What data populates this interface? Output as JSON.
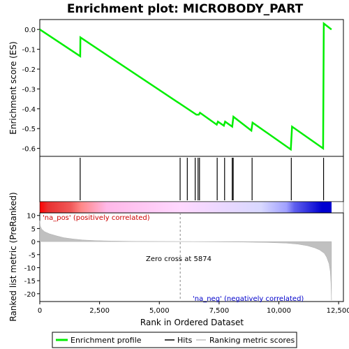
{
  "chart_data": {
    "type": "line",
    "title": "Enrichment plot: MICROBODY_PART",
    "enrichment_panel": {
      "ylabel": "Enrichment score (ES)",
      "ylim": [
        -0.64,
        0.05
      ],
      "yticks": [
        0.0,
        -0.1,
        -0.2,
        -0.3,
        -0.4,
        -0.5,
        -0.6
      ],
      "ytick_labels": [
        "0.0",
        "-0.1",
        "-0.2",
        "-0.3",
        "-0.4",
        "-0.5",
        "-0.6"
      ],
      "line_color": "#00ee00",
      "points": [
        [
          0,
          0.0
        ],
        [
          1690,
          -0.135
        ],
        [
          1700,
          -0.04
        ],
        [
          6550,
          -0.43
        ],
        [
          6650,
          -0.43
        ],
        [
          6700,
          -0.42
        ],
        [
          7400,
          -0.48
        ],
        [
          7450,
          -0.465
        ],
        [
          7700,
          -0.485
        ],
        [
          7750,
          -0.465
        ],
        [
          8050,
          -0.49
        ],
        [
          8100,
          -0.44
        ],
        [
          8850,
          -0.51
        ],
        [
          8900,
          -0.47
        ],
        [
          10500,
          -0.605
        ],
        [
          10550,
          -0.49
        ],
        [
          11850,
          -0.6
        ],
        [
          11880,
          0.03
        ],
        [
          12200,
          0.0
        ]
      ]
    },
    "hits": {
      "positions": [
        1690,
        5870,
        6170,
        6500,
        6620,
        6680,
        7420,
        7730,
        8050,
        8090,
        8880,
        10520,
        11870
      ]
    },
    "color_bar": {
      "stops": [
        {
          "x": 0,
          "color": "#ff0000"
        },
        {
          "x": 330,
          "color": "#e83030"
        },
        {
          "x": 1290,
          "color": "#f05858"
        },
        {
          "x": 1740,
          "color": "#ff8888"
        },
        {
          "x": 2800,
          "color": "#ffb8e8"
        },
        {
          "x": 5874,
          "color": "#ffd8ff"
        },
        {
          "x": 9250,
          "color": "#d8d8ff"
        },
        {
          "x": 10320,
          "color": "#a0a0ff"
        },
        {
          "x": 10650,
          "color": "#6060ee"
        },
        {
          "x": 11800,
          "color": "#0000d0"
        }
      ],
      "end": 12200
    },
    "ranked_panel": {
      "ylabel": "Ranked list metric (PreRanked)",
      "xlabel": "Rank in Ordered Dataset",
      "ylim": [
        -23,
        11
      ],
      "yticks": [
        10,
        5,
        0,
        -5,
        -10,
        -15,
        -20
      ],
      "ytick_labels": [
        "10",
        "5",
        "0",
        "-5",
        "-10",
        "-15",
        "-20"
      ],
      "fill_color": "#c0c0c0",
      "metric_curve": [
        [
          0,
          8.0
        ],
        [
          20,
          6.0
        ],
        [
          80,
          4.8
        ],
        [
          200,
          3.8
        ],
        [
          400,
          3.0
        ],
        [
          700,
          2.2
        ],
        [
          1000,
          1.5
        ],
        [
          1400,
          1.0
        ],
        [
          1800,
          0.6
        ],
        [
          2400,
          0.35
        ],
        [
          3000,
          0.2
        ],
        [
          4000,
          0.08
        ],
        [
          5874,
          0.0
        ],
        [
          7000,
          -0.08
        ],
        [
          8500,
          -0.2
        ],
        [
          9500,
          -0.35
        ],
        [
          10300,
          -0.6
        ],
        [
          10800,
          -1.0
        ],
        [
          11200,
          -1.6
        ],
        [
          11500,
          -2.4
        ],
        [
          11700,
          -3.2
        ],
        [
          11900,
          -4.5
        ],
        [
          12000,
          -6.0
        ],
        [
          12100,
          -8.5
        ],
        [
          12150,
          -11.5
        ],
        [
          12180,
          -16
        ],
        [
          12200,
          -22.5
        ]
      ],
      "zero_cross_label": "Zero cross at 5874",
      "zero_cross_x": 5874,
      "pos_label": "'na_pos' (positively correlated)",
      "neg_label": "'na_neg' (negatively correlated)"
    },
    "xlim": [
      0,
      12700
    ],
    "xticks": [
      0,
      2500,
      5000,
      7500,
      10000,
      12500
    ],
    "xtick_labels": [
      "0",
      "2,500",
      "5,000",
      "7,500",
      "10,000",
      "12,500"
    ],
    "legend": {
      "placement": "bottom",
      "items": [
        {
          "label": "Enrichment profile",
          "color": "#00ee00",
          "kind": "thick-line"
        },
        {
          "label": "Hits",
          "color": "#000000",
          "kind": "line"
        },
        {
          "label": "Ranking metric scores",
          "color": "#c0c0c0",
          "kind": "line"
        }
      ]
    }
  }
}
